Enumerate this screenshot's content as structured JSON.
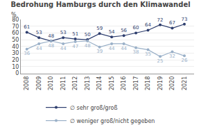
{
  "chart_data": {
    "type": "line",
    "title": "Bedrohung Hamburgs durch den Klimawandel",
    "x": [
      2008,
      2009,
      2010,
      2011,
      2012,
      2013,
      2014,
      2015,
      2016,
      2017,
      2018,
      2019,
      2020,
      2021
    ],
    "series": [
      {
        "name": "∅ sehr groß/groß",
        "color": "#2e3e6e",
        "marker": "circle",
        "values": [
          61,
          53,
          48,
          53,
          51,
          50,
          59,
          54,
          56,
          60,
          64,
          72,
          67,
          73
        ]
      },
      {
        "name": "∅ weniger groß/nicht gegeben",
        "color": "#9ab0c8",
        "marker": "circle",
        "values": [
          36,
          44,
          48,
          44,
          47,
          48,
          39,
          44,
          44,
          38,
          35,
          25,
          32,
          26
        ]
      }
    ],
    "ylabel": "%",
    "xlim": [
      2007.5,
      2021.8
    ],
    "xticks": [
      2008,
      2009,
      2010,
      2011,
      2012,
      2013,
      2014,
      2015,
      2016,
      2017,
      2018,
      2019,
      2020,
      2021
    ],
    "ylim": [
      0,
      80
    ],
    "yticks": [
      0,
      10,
      20,
      30,
      40,
      50,
      60,
      70,
      80
    ],
    "grid": true,
    "legend": "bottom",
    "data_labels": true
  }
}
